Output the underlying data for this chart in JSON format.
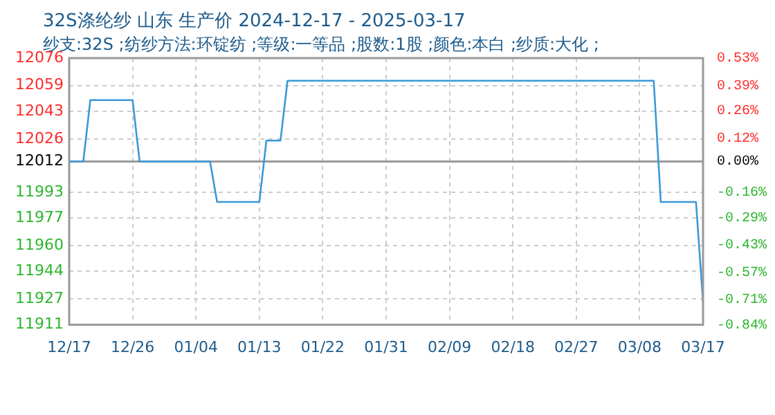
{
  "chart_data": {
    "type": "line",
    "title": "32S涤纶纱 山东 生产价 2024-12-17 - 2025-03-17",
    "subtitle": "纱支:32S ;纺纱方法:环锭纺 ;等级:一等品 ;股数:1股 ;颜色:本白 ;纱质:大化 ;",
    "x": [
      "2024-12-17",
      "2024-12-19",
      "2024-12-20",
      "2024-12-26",
      "2024-12-27",
      "2025-01-06",
      "2025-01-07",
      "2025-01-13",
      "2025-01-14",
      "2025-01-16",
      "2025-01-17",
      "2025-03-10",
      "2025-03-11",
      "2025-03-16",
      "2025-03-17"
    ],
    "series": [
      {
        "color": "#3a98d8",
        "values": [
          12012,
          12012,
          12050,
          12050,
          12012,
          12012,
          11987,
          11987,
          12025,
          12025,
          12062,
          12062,
          11987,
          11987,
          11925
        ]
      }
    ],
    "xlim": [
      "2024-12-17",
      "2025-03-17"
    ],
    "xticks": [
      {
        "value": "2024-12-17",
        "label": "12/17"
      },
      {
        "value": "2024-12-26",
        "label": "12/26"
      },
      {
        "value": "2025-01-04",
        "label": "01/04"
      },
      {
        "value": "2025-01-13",
        "label": "01/13"
      },
      {
        "value": "2025-01-22",
        "label": "01/22"
      },
      {
        "value": "2025-01-31",
        "label": "01/31"
      },
      {
        "value": "2025-02-09",
        "label": "02/09"
      },
      {
        "value": "2025-02-18",
        "label": "02/18"
      },
      {
        "value": "2025-02-27",
        "label": "02/27"
      },
      {
        "value": "2025-03-08",
        "label": "03/08"
      },
      {
        "value": "2025-03-17",
        "label": "03/17"
      }
    ],
    "ylim": [
      11911,
      12076
    ],
    "yticks": [
      11911,
      11927,
      11944,
      11960,
      11977,
      11993,
      12012,
      12026,
      12043,
      12059,
      12076
    ],
    "y2lim": [
      -0.84,
      0.53
    ],
    "y2ticks": [
      {
        "value": -0.84,
        "label": "-0.84%"
      },
      {
        "value": -0.71,
        "label": "-0.71%"
      },
      {
        "value": -0.57,
        "label": "-0.57%"
      },
      {
        "value": -0.43,
        "label": "-0.43%"
      },
      {
        "value": -0.29,
        "label": "-0.29%"
      },
      {
        "value": -0.16,
        "label": "-0.16%"
      },
      {
        "value": 0,
        "label": "0.00%"
      },
      {
        "value": 0.12,
        "label": "0.12%"
      },
      {
        "value": 0.26,
        "label": "0.26%"
      },
      {
        "value": 0.39,
        "label": "0.39%"
      },
      {
        "value": 0.53,
        "label": "0.53%"
      }
    ],
    "ref_lines": [
      {
        "axis": "y",
        "value": 12012,
        "color": "#999999"
      }
    ],
    "grid": true,
    "legend": false,
    "marker": "none",
    "line_style": "solid"
  }
}
